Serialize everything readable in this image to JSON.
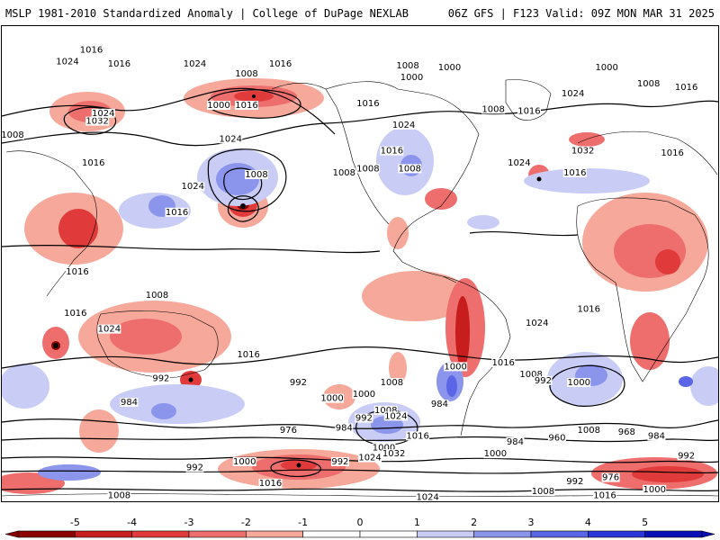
{
  "header": {
    "title_left": "MSLP 1981-2010 Standardized Anomaly | College of DuPage NEXLAB",
    "title_right": "06Z GFS | F123 Valid: 09Z MON MAR 31 2025"
  },
  "colorbar": {
    "ticks": [
      "-5",
      "-4",
      "-3",
      "-2",
      "-1",
      "0",
      "1",
      "2",
      "3",
      "4",
      "5"
    ],
    "colors": [
      "#8b0000",
      "#c81d1d",
      "#e03a3a",
      "#ee6e6e",
      "#f6a89a",
      "#ffffff",
      "#ffffff",
      "#c9cdf5",
      "#8c95ec",
      "#5a66e6",
      "#2b36d8",
      "#0a10b8"
    ]
  },
  "isobar_labels": [
    "1016",
    "1008",
    "1000",
    "1024",
    "1032",
    "992",
    "984",
    "976",
    "968",
    "960"
  ],
  "map_labels": [
    {
      "text": "1008",
      "lon": -156,
      "lat": 70
    },
    {
      "text": "1000",
      "lon": -154,
      "lat": 64
    },
    {
      "text": "1016",
      "lon": -176,
      "lat": 51
    },
    {
      "text": "1008",
      "lon": -113,
      "lat": 48
    },
    {
      "text": "1016",
      "lon": -95,
      "lat": 47
    },
    {
      "text": "1024",
      "lon": -158,
      "lat": 40
    },
    {
      "text": "1016",
      "lon": -164,
      "lat": 27
    },
    {
      "text": "1024",
      "lon": -100,
      "lat": 21
    },
    {
      "text": "1008",
      "lon": -176,
      "lat": 18
    },
    {
      "text": "1008",
      "lon": -155,
      "lat": 18
    },
    {
      "text": "1000",
      "lon": -135,
      "lat": 69
    },
    {
      "text": "1024",
      "lon": -73,
      "lat": 56
    },
    {
      "text": "1032",
      "lon": -68,
      "lat": 27
    },
    {
      "text": "1016",
      "lon": -72,
      "lat": 16
    },
    {
      "text": "1000",
      "lon": -56,
      "lat": 69
    },
    {
      "text": "1008",
      "lon": -35,
      "lat": 61
    },
    {
      "text": "1016",
      "lon": -16,
      "lat": 59
    },
    {
      "text": "1016",
      "lon": 45,
      "lat": 78
    },
    {
      "text": "1024",
      "lon": 33,
      "lat": 72
    },
    {
      "text": "1016",
      "lon": 59,
      "lat": 71
    },
    {
      "text": "1024",
      "lon": 97,
      "lat": 71
    },
    {
      "text": "1008",
      "lon": 123,
      "lat": 66
    },
    {
      "text": "1016",
      "lon": 140,
      "lat": 71
    },
    {
      "text": "1000",
      "lon": 109,
      "lat": 50
    },
    {
      "text": "1016",
      "lon": 123,
      "lat": 50
    },
    {
      "text": "1008",
      "lon": 3,
      "lat": 35
    },
    {
      "text": "1032",
      "lon": 48,
      "lat": 42
    },
    {
      "text": "1024",
      "lon": 51,
      "lat": 46
    },
    {
      "text": "1016",
      "lon": -23,
      "lat": 26
    },
    {
      "text": "1016",
      "lon": 46,
      "lat": 21
    },
    {
      "text": "1024",
      "lon": 96,
      "lat": 9
    },
    {
      "text": "1024",
      "lon": 115,
      "lat": 33
    },
    {
      "text": "1016",
      "lon": 88,
      "lat": -4
    },
    {
      "text": "1008",
      "lon": 128,
      "lat": 15
    },
    {
      "text": "1008",
      "lon": 172,
      "lat": 16
    },
    {
      "text": "1016",
      "lon": 38,
      "lat": -34
    },
    {
      "text": "1008",
      "lon": 78,
      "lat": -46
    },
    {
      "text": "1016",
      "lon": 37,
      "lat": -55
    },
    {
      "text": "1024",
      "lon": 54,
      "lat": -63
    },
    {
      "text": "1016",
      "lon": -65,
      "lat": -53
    },
    {
      "text": "1024",
      "lon": -91,
      "lat": -60
    },
    {
      "text": "1016",
      "lon": 124,
      "lat": -76
    },
    {
      "text": "1000",
      "lon": -132,
      "lat": -82
    },
    {
      "text": "1016",
      "lon": -108,
      "lat": -80
    },
    {
      "text": "1008",
      "lon": -94,
      "lat": -86
    },
    {
      "text": "992",
      "lon": -88,
      "lat": -89
    },
    {
      "text": "1000",
      "lon": -70,
      "lat": -90
    },
    {
      "text": "1008",
      "lon": -65,
      "lat": -114
    },
    {
      "text": "992",
      "lon": 80,
      "lat": -88
    },
    {
      "text": "984",
      "lon": 64,
      "lat": -100
    },
    {
      "text": "992",
      "lon": 149,
      "lat": -90
    },
    {
      "text": "1000",
      "lon": 166,
      "lat": -98
    },
    {
      "text": "1008",
      "lon": -164,
      "lat": -90
    },
    {
      "text": "1000",
      "lon": -178,
      "lat": -96
    },
    {
      "text": "984",
      "lon": -140,
      "lat": -101
    },
    {
      "text": "1008",
      "lon": -167,
      "lat": -104
    },
    {
      "text": "1024",
      "lon": -162,
      "lat": -107
    },
    {
      "text": "992",
      "lon": -178,
      "lat": -108
    },
    {
      "text": "1016",
      "lon": -151,
      "lat": -117
    },
    {
      "text": "1000",
      "lon": -168,
      "lat": -123
    },
    {
      "text": "984",
      "lon": -102,
      "lat": -120
    },
    {
      "text": "1032",
      "lon": -163,
      "lat": -126
    },
    {
      "text": "1024",
      "lon": -175,
      "lat": -128
    },
    {
      "text": "1000",
      "lon": -112,
      "lat": -126
    },
    {
      "text": "960",
      "lon": -81,
      "lat": -118
    },
    {
      "text": "968",
      "lon": -46,
      "lat": -115
    },
    {
      "text": "984",
      "lon": -31,
      "lat": -117
    },
    {
      "text": "992",
      "lon": -16,
      "lat": -127
    },
    {
      "text": "976",
      "lon": -54,
      "lat": -138
    },
    {
      "text": "992",
      "lon": -72,
      "lat": -140
    },
    {
      "text": "1008",
      "lon": -88,
      "lat": -145
    },
    {
      "text": "1016",
      "lon": -57,
      "lat": -147
    },
    {
      "text": "1000",
      "lon": -32,
      "lat": -144
    },
    {
      "text": "1024",
      "lon": -146,
      "lat": -148
    },
    {
      "text": "992",
      "lon": 97,
      "lat": -133
    },
    {
      "text": "1000",
      "lon": 122,
      "lat": -130
    },
    {
      "text": "1008",
      "lon": 59,
      "lat": -147
    },
    {
      "text": "976",
      "lon": 144,
      "lat": -114
    },
    {
      "text": "984",
      "lon": 172,
      "lat": -113
    },
    {
      "text": "992",
      "lon": 170,
      "lat": -130
    },
    {
      "text": "1016",
      "lon": 135,
      "lat": -141
    }
  ]
}
